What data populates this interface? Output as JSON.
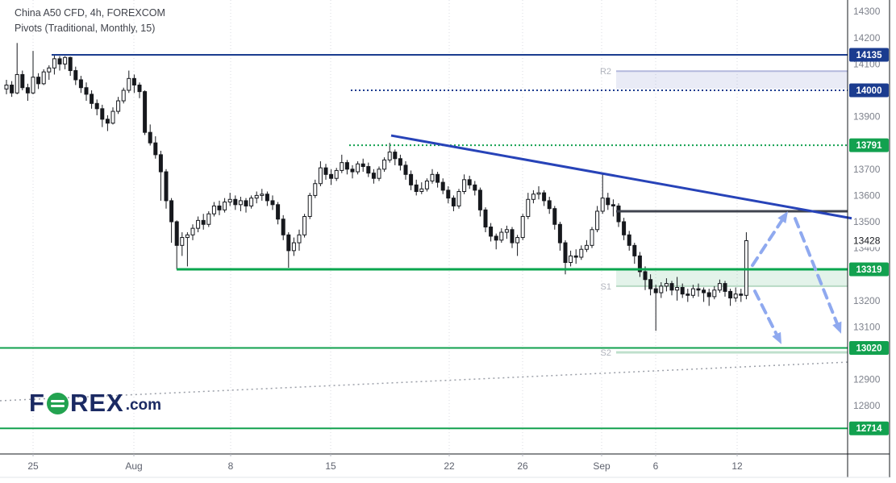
{
  "header": {
    "title_line1": "China A50 CFD, 4h, FOREXCOM",
    "title_line2": "Pivots (Traditional, Monthly, 15)"
  },
  "logo": {
    "brand_left": "F",
    "brand_right": "REX",
    "tld": ".com"
  },
  "price_axis": {
    "gray_labels": [
      {
        "label": "14300",
        "price": 14300
      },
      {
        "label": "14200",
        "price": 14200
      },
      {
        "label": "14100",
        "price": 14100
      },
      {
        "label": "13900",
        "price": 13900
      },
      {
        "label": "13700",
        "price": 13700
      },
      {
        "label": "13600",
        "price": 13600
      },
      {
        "label": "13500",
        "price": 13500
      },
      {
        "label": "13400",
        "price": 13400
      },
      {
        "label": "13200",
        "price": 13200
      },
      {
        "label": "13100",
        "price": 13100
      },
      {
        "label": "12900",
        "price": 12900
      },
      {
        "label": "12800",
        "price": 12800
      }
    ],
    "current_price": {
      "label": "13428",
      "price": 13428
    },
    "badges": [
      {
        "label": "14135",
        "price": 14135,
        "color": "#1b3c8f"
      },
      {
        "label": "14000",
        "price": 14000,
        "color": "#1b3c8f"
      },
      {
        "label": "13791",
        "price": 13791,
        "color": "#12a14f"
      },
      {
        "label": "13319",
        "price": 13319,
        "color": "#12a14f"
      },
      {
        "label": "13020",
        "price": 13020,
        "color": "#12a14f"
      },
      {
        "label": "12714",
        "price": 12714,
        "color": "#12a14f"
      }
    ]
  },
  "time_axis": {
    "ticks": [
      {
        "label": "25",
        "x": 41
      },
      {
        "label": "Aug",
        "x": 166
      },
      {
        "label": "8",
        "x": 286
      },
      {
        "label": "15",
        "x": 410
      },
      {
        "label": "22",
        "x": 557
      },
      {
        "label": "26",
        "x": 648
      },
      {
        "label": "Sep",
        "x": 746
      },
      {
        "label": "6",
        "x": 813
      },
      {
        "label": "12",
        "x": 914
      }
    ]
  },
  "chart_data": {
    "type": "candlestick",
    "symbol": "China A50 CFD",
    "interval": "4h",
    "provider": "FOREXCOM",
    "indicator": "Pivots (Traditional, Monthly, 15)",
    "ylim": [
      12650,
      14360
    ],
    "x_start": 8,
    "x_step": 6.6,
    "candles": [
      [
        14005,
        14040,
        13985,
        14020
      ],
      [
        14020,
        14035,
        13975,
        13990
      ],
      [
        13990,
        14180,
        13985,
        14060
      ],
      [
        14060,
        14075,
        14000,
        14010
      ],
      [
        14010,
        14025,
        13960,
        13990
      ],
      [
        13990,
        14150,
        13985,
        14050
      ],
      [
        14050,
        14065,
        14005,
        14025
      ],
      [
        14025,
        14080,
        14020,
        14070
      ],
      [
        14070,
        14095,
        14040,
        14085
      ],
      [
        14085,
        14135,
        14060,
        14120
      ],
      [
        14120,
        14130,
        14075,
        14100
      ],
      [
        14100,
        14130,
        14080,
        14125
      ],
      [
        14125,
        14128,
        14055,
        14075
      ],
      [
        14075,
        14090,
        14020,
        14040
      ],
      [
        14040,
        14055,
        13990,
        14010
      ],
      [
        14010,
        14030,
        13960,
        13985
      ],
      [
        13985,
        14000,
        13930,
        13950
      ],
      [
        13950,
        13965,
        13905,
        13930
      ],
      [
        13930,
        13945,
        13860,
        13890
      ],
      [
        13890,
        13905,
        13845,
        13875
      ],
      [
        13875,
        13935,
        13870,
        13920
      ],
      [
        13920,
        13975,
        13910,
        13960
      ],
      [
        13960,
        14010,
        13950,
        14000
      ],
      [
        14000,
        14075,
        13990,
        14045
      ],
      [
        14045,
        14060,
        13990,
        14020
      ],
      [
        14020,
        14030,
        13970,
        13995
      ],
      [
        13995,
        14000,
        13830,
        13840
      ],
      [
        13840,
        13870,
        13790,
        13800
      ],
      [
        13800,
        13825,
        13740,
        13755
      ],
      [
        13755,
        13770,
        13580,
        13690
      ],
      [
        13690,
        13700,
        13550,
        13580
      ],
      [
        13580,
        13590,
        13420,
        13500
      ],
      [
        13500,
        13505,
        13319,
        13410
      ],
      [
        13410,
        13460,
        13370,
        13440
      ],
      [
        13440,
        13460,
        13330,
        13450
      ],
      [
        13450,
        13490,
        13430,
        13475
      ],
      [
        13475,
        13520,
        13460,
        13505
      ],
      [
        13505,
        13530,
        13470,
        13490
      ],
      [
        13490,
        13540,
        13480,
        13530
      ],
      [
        13530,
        13575,
        13520,
        13560
      ],
      [
        13560,
        13580,
        13525,
        13545
      ],
      [
        13545,
        13590,
        13535,
        13575
      ],
      [
        13575,
        13610,
        13560,
        13585
      ],
      [
        13585,
        13600,
        13545,
        13565
      ],
      [
        13565,
        13595,
        13540,
        13580
      ],
      [
        13580,
        13590,
        13535,
        13560
      ],
      [
        13560,
        13600,
        13550,
        13590
      ],
      [
        13590,
        13615,
        13570,
        13600
      ],
      [
        13600,
        13625,
        13580,
        13605
      ],
      [
        13605,
        13615,
        13560,
        13580
      ],
      [
        13580,
        13600,
        13545,
        13565
      ],
      [
        13565,
        13575,
        13490,
        13510
      ],
      [
        13510,
        13525,
        13430,
        13450
      ],
      [
        13450,
        13460,
        13325,
        13390
      ],
      [
        13390,
        13440,
        13370,
        13420
      ],
      [
        13420,
        13470,
        13390,
        13450
      ],
      [
        13450,
        13530,
        13440,
        13520
      ],
      [
        13520,
        13610,
        13510,
        13600
      ],
      [
        13600,
        13660,
        13590,
        13645
      ],
      [
        13645,
        13730,
        13635,
        13705
      ],
      [
        13705,
        13720,
        13660,
        13680
      ],
      [
        13680,
        13700,
        13640,
        13665
      ],
      [
        13665,
        13705,
        13655,
        13695
      ],
      [
        13695,
        13755,
        13685,
        13725
      ],
      [
        13725,
        13735,
        13680,
        13700
      ],
      [
        13700,
        13715,
        13665,
        13690
      ],
      [
        13690,
        13730,
        13680,
        13720
      ],
      [
        13720,
        13740,
        13690,
        13710
      ],
      [
        13710,
        13725,
        13670,
        13685
      ],
      [
        13685,
        13700,
        13645,
        13665
      ],
      [
        13665,
        13710,
        13655,
        13700
      ],
      [
        13700,
        13745,
        13690,
        13735
      ],
      [
        13735,
        13800,
        13725,
        13765
      ],
      [
        13765,
        13775,
        13715,
        13740
      ],
      [
        13740,
        13755,
        13695,
        13715
      ],
      [
        13715,
        13730,
        13660,
        13680
      ],
      [
        13680,
        13695,
        13620,
        13640
      ],
      [
        13640,
        13660,
        13600,
        13615
      ],
      [
        13615,
        13650,
        13605,
        13625
      ],
      [
        13625,
        13665,
        13615,
        13655
      ],
      [
        13655,
        13700,
        13645,
        13680
      ],
      [
        13680,
        13690,
        13630,
        13650
      ],
      [
        13650,
        13665,
        13605,
        13620
      ],
      [
        13620,
        13635,
        13570,
        13590
      ],
      [
        13590,
        13600,
        13540,
        13560
      ],
      [
        13560,
        13625,
        13550,
        13615
      ],
      [
        13615,
        13680,
        13605,
        13660
      ],
      [
        13660,
        13675,
        13625,
        13640
      ],
      [
        13640,
        13655,
        13600,
        13620
      ],
      [
        13620,
        13630,
        13520,
        13545
      ],
      [
        13545,
        13555,
        13460,
        13480
      ],
      [
        13480,
        13495,
        13425,
        13445
      ],
      [
        13445,
        13455,
        13395,
        13430
      ],
      [
        13430,
        13475,
        13420,
        13460
      ],
      [
        13460,
        13485,
        13435,
        13470
      ],
      [
        13470,
        13480,
        13400,
        13420
      ],
      [
        13420,
        13450,
        13370,
        13440
      ],
      [
        13440,
        13530,
        13430,
        13520
      ],
      [
        13520,
        13610,
        13510,
        13585
      ],
      [
        13585,
        13620,
        13570,
        13605
      ],
      [
        13605,
        13635,
        13585,
        13610
      ],
      [
        13610,
        13620,
        13560,
        13580
      ],
      [
        13580,
        13595,
        13530,
        13550
      ],
      [
        13550,
        13560,
        13470,
        13490
      ],
      [
        13490,
        13500,
        13390,
        13420
      ],
      [
        13420,
        13430,
        13300,
        13345
      ],
      [
        13345,
        13390,
        13330,
        13370
      ],
      [
        13370,
        13395,
        13340,
        13365
      ],
      [
        13365,
        13410,
        13355,
        13395
      ],
      [
        13395,
        13430,
        13385,
        13410
      ],
      [
        13410,
        13480,
        13400,
        13470
      ],
      [
        13470,
        13560,
        13460,
        13540
      ],
      [
        13540,
        13680,
        13530,
        13590
      ],
      [
        13590,
        13610,
        13545,
        13565
      ],
      [
        13565,
        13585,
        13520,
        13560
      ],
      [
        13560,
        13570,
        13480,
        13500
      ],
      [
        13500,
        13515,
        13430,
        13450
      ],
      [
        13450,
        13465,
        13390,
        13410
      ],
      [
        13410,
        13420,
        13340,
        13370
      ],
      [
        13370,
        13385,
        13290,
        13310
      ],
      [
        13310,
        13330,
        13240,
        13280
      ],
      [
        13280,
        13300,
        13220,
        13245
      ],
      [
        13245,
        13260,
        13085,
        13230
      ],
      [
        13230,
        13270,
        13210,
        13255
      ],
      [
        13255,
        13285,
        13235,
        13265
      ],
      [
        13265,
        13275,
        13220,
        13240
      ],
      [
        13240,
        13290,
        13200,
        13250
      ],
      [
        13250,
        13265,
        13210,
        13225
      ],
      [
        13225,
        13245,
        13195,
        13220
      ],
      [
        13220,
        13260,
        13210,
        13245
      ],
      [
        13245,
        13265,
        13215,
        13240
      ],
      [
        13240,
        13250,
        13195,
        13230
      ],
      [
        13230,
        13245,
        13180,
        13215
      ],
      [
        13215,
        13255,
        13205,
        13240
      ],
      [
        13240,
        13280,
        13230,
        13265
      ],
      [
        13265,
        13275,
        13215,
        13235
      ],
      [
        13235,
        13245,
        13180,
        13210
      ],
      [
        13210,
        13250,
        13195,
        13225
      ],
      [
        13225,
        13245,
        13195,
        13220
      ],
      [
        13220,
        13460,
        13205,
        13428
      ]
    ],
    "levels": [
      {
        "price": 14135,
        "x_start": 64,
        "color": "#1b3c8f",
        "style": "solid",
        "width": 2
      },
      {
        "price": 14000,
        "x_start": 435,
        "color": "#1b3c8f",
        "style": "dotted",
        "width": 2
      },
      {
        "price": 13791,
        "x_start": 433,
        "color": "#12a14f",
        "style": "dotted",
        "width": 2
      },
      {
        "price": 13540,
        "x_start": 764,
        "color": "#40444f",
        "style": "solid",
        "width": 3
      },
      {
        "price": 13319,
        "x_start": 219,
        "color": "#0aa64e",
        "style": "solid",
        "width": 3
      },
      {
        "price": 13020,
        "x_start": 0,
        "color": "#12a14f",
        "style": "solid",
        "width": 2
      },
      {
        "price": 12714,
        "x_start": 0,
        "color": "#12a14f",
        "style": "solid",
        "width": 2
      }
    ],
    "pivot_zones": [
      {
        "name": "R2",
        "kind": "band",
        "price_top": 14073,
        "price_bottom": 14006,
        "edge": "top",
        "fill": "rgba(116,130,200,0.16)",
        "edge_color": "#b3b9dd",
        "x_start": 764
      },
      {
        "name": "S1",
        "kind": "band",
        "price_top": 13319,
        "price_bottom": 13255,
        "edge": "bottom",
        "fill": "rgba(41,164,92,0.13)",
        "edge_color": "#b7d9c4",
        "x_start": 764
      },
      {
        "name": "S2",
        "kind": "line",
        "price": 13003,
        "fill": "none",
        "edge_color": "#bfe0cc",
        "x_start": 764
      }
    ],
    "trendlines": [
      {
        "x1": 485,
        "price1": 13828,
        "x2": 1056,
        "price2": 13513,
        "color": "#2743b8",
        "width": 3,
        "style": "solid"
      },
      {
        "x1": 0,
        "price1": 12819,
        "x2": 1051,
        "price2": 12966,
        "color": "#9b9fa8",
        "width": 1.5,
        "style": "dotted"
      }
    ],
    "arrows": [
      {
        "x1": 933,
        "price1": 13334,
        "x2": 977,
        "price2": 13540
      },
      {
        "x1": 986,
        "price1": 13512,
        "x2": 1043,
        "price2": 13074
      },
      {
        "x1": 936,
        "price1": 13236,
        "x2": 969,
        "price2": 13034
      }
    ],
    "arrow_style": {
      "color": "#8fa9ef",
      "width": 4,
      "dash": "11 8"
    }
  },
  "colors": {
    "up_candle": "#ffffff",
    "down_candle": "#16181d",
    "candle_border": "#16181d",
    "grid": "#d9dbe2",
    "axis_border": "#16181d",
    "axis_text": "#7e828c",
    "pivot_label": "#b0b3bc"
  }
}
